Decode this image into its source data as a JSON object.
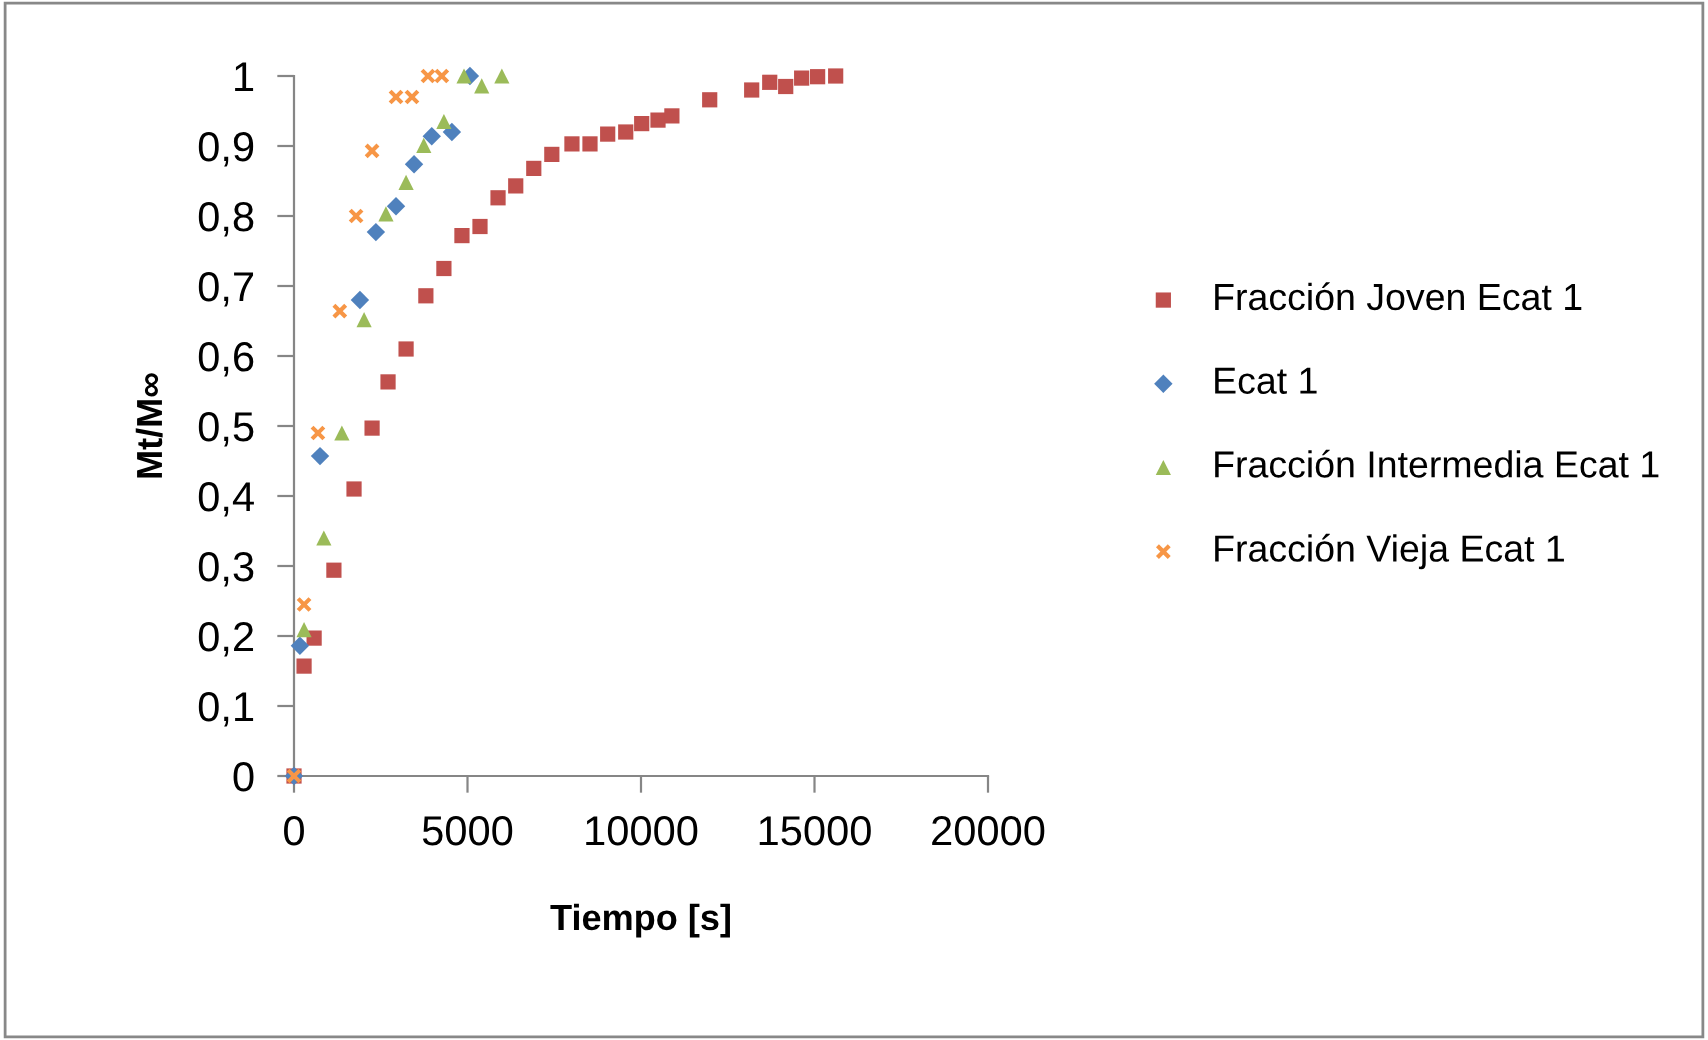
{
  "chart_data": {
    "type": "scatter",
    "xlabel": "Tiempo [s]",
    "ylabel": "Mt/M∞",
    "xlim": [
      0,
      20000
    ],
    "xticks": [
      0,
      5000,
      10000,
      15000,
      20000
    ],
    "ylim": [
      0,
      1
    ],
    "yticks": [
      {
        "value": 0,
        "label": "0"
      },
      {
        "value": 0.1,
        "label": "0,1"
      },
      {
        "value": 0.2,
        "label": "0,2"
      },
      {
        "value": 0.3,
        "label": "0,3"
      },
      {
        "value": 0.4,
        "label": "0,4"
      },
      {
        "value": 0.5,
        "label": "0,5"
      },
      {
        "value": 0.6,
        "label": "0,6"
      },
      {
        "value": 0.7,
        "label": "0,7"
      },
      {
        "value": 0.8,
        "label": "0,8"
      },
      {
        "value": 0.9,
        "label": "0,9"
      },
      {
        "value": 1,
        "label": "1"
      }
    ],
    "grid": false,
    "legend": "right",
    "series": [
      {
        "name": "Fracción Joven Ecat 1",
        "color": "#c0504d",
        "marker": "square",
        "x": [
          0,
          290,
          580,
          1150,
          1730,
          2250,
          2710,
          3230,
          3800,
          4320,
          4840,
          5360,
          5880,
          6390,
          6910,
          7430,
          8010,
          8530,
          9040,
          9560,
          10020,
          10490,
          10890,
          11980,
          13190,
          13710,
          14170,
          14630,
          15090,
          15610
        ],
        "values": [
          0,
          0.157,
          0.197,
          0.294,
          0.41,
          0.497,
          0.563,
          0.61,
          0.686,
          0.725,
          0.772,
          0.785,
          0.826,
          0.843,
          0.868,
          0.888,
          0.903,
          0.903,
          0.917,
          0.92,
          0.932,
          0.937,
          0.943,
          0.966,
          0.98,
          0.991,
          0.985,
          0.997,
          0.999,
          1.0
        ]
      },
      {
        "name": "Ecat 1",
        "color": "#4f81bd",
        "marker": "diamond",
        "x": [
          0,
          170,
          750,
          1900,
          2360,
          2940,
          3460,
          3970,
          4550,
          5070
        ],
        "values": [
          0,
          0.186,
          0.457,
          0.68,
          0.777,
          0.814,
          0.874,
          0.914,
          0.92,
          1.0
        ]
      },
      {
        "name": "Fracción Intermedia Ecat 1",
        "color": "#9bbb59",
        "marker": "triangle",
        "x": [
          290,
          860,
          1380,
          2020,
          2650,
          3230,
          3740,
          4320,
          4900,
          5410,
          5990
        ],
        "values": [
          0.209,
          0.34,
          0.49,
          0.652,
          0.803,
          0.848,
          0.901,
          0.935,
          1.0,
          0.986,
          1.0
        ]
      },
      {
        "name": "Fracción Vieja Ecat 1",
        "color": "#f79646",
        "marker": "cross",
        "x": [
          0,
          290,
          690,
          1320,
          1790,
          2250,
          2940,
          3400,
          3860,
          4260
        ],
        "values": [
          0,
          0.245,
          0.49,
          0.664,
          0.8,
          0.893,
          0.97,
          0.97,
          1.0,
          1.0
        ]
      }
    ]
  }
}
